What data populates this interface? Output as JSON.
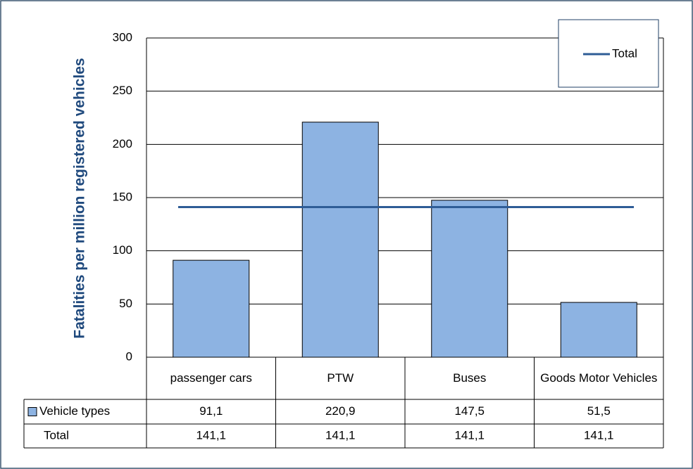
{
  "chart_data": {
    "type": "bar",
    "y_label": "Fatalities per million registered vehicles",
    "categories": [
      "passenger cars",
      "PTW",
      "Buses",
      "Goods Motor Vehicles"
    ],
    "series": [
      {
        "name": "Vehicle types",
        "type": "bar",
        "color": "#8db3e2",
        "values": [
          91.1,
          220.9,
          147.5,
          51.5
        ],
        "value_labels": [
          "91,1",
          "220,9",
          "147,5",
          "51,5"
        ]
      },
      {
        "name": "Total",
        "type": "line",
        "color": "#2e5c96",
        "values": [
          141.1,
          141.1,
          141.1,
          141.1
        ],
        "value_labels": [
          "141,1",
          "141,1",
          "141,1",
          "141,1"
        ]
      }
    ],
    "ylim": [
      0,
      300
    ],
    "yticks": [
      0,
      50,
      100,
      150,
      200,
      250,
      300
    ],
    "grid": true,
    "legend": "top-right"
  }
}
